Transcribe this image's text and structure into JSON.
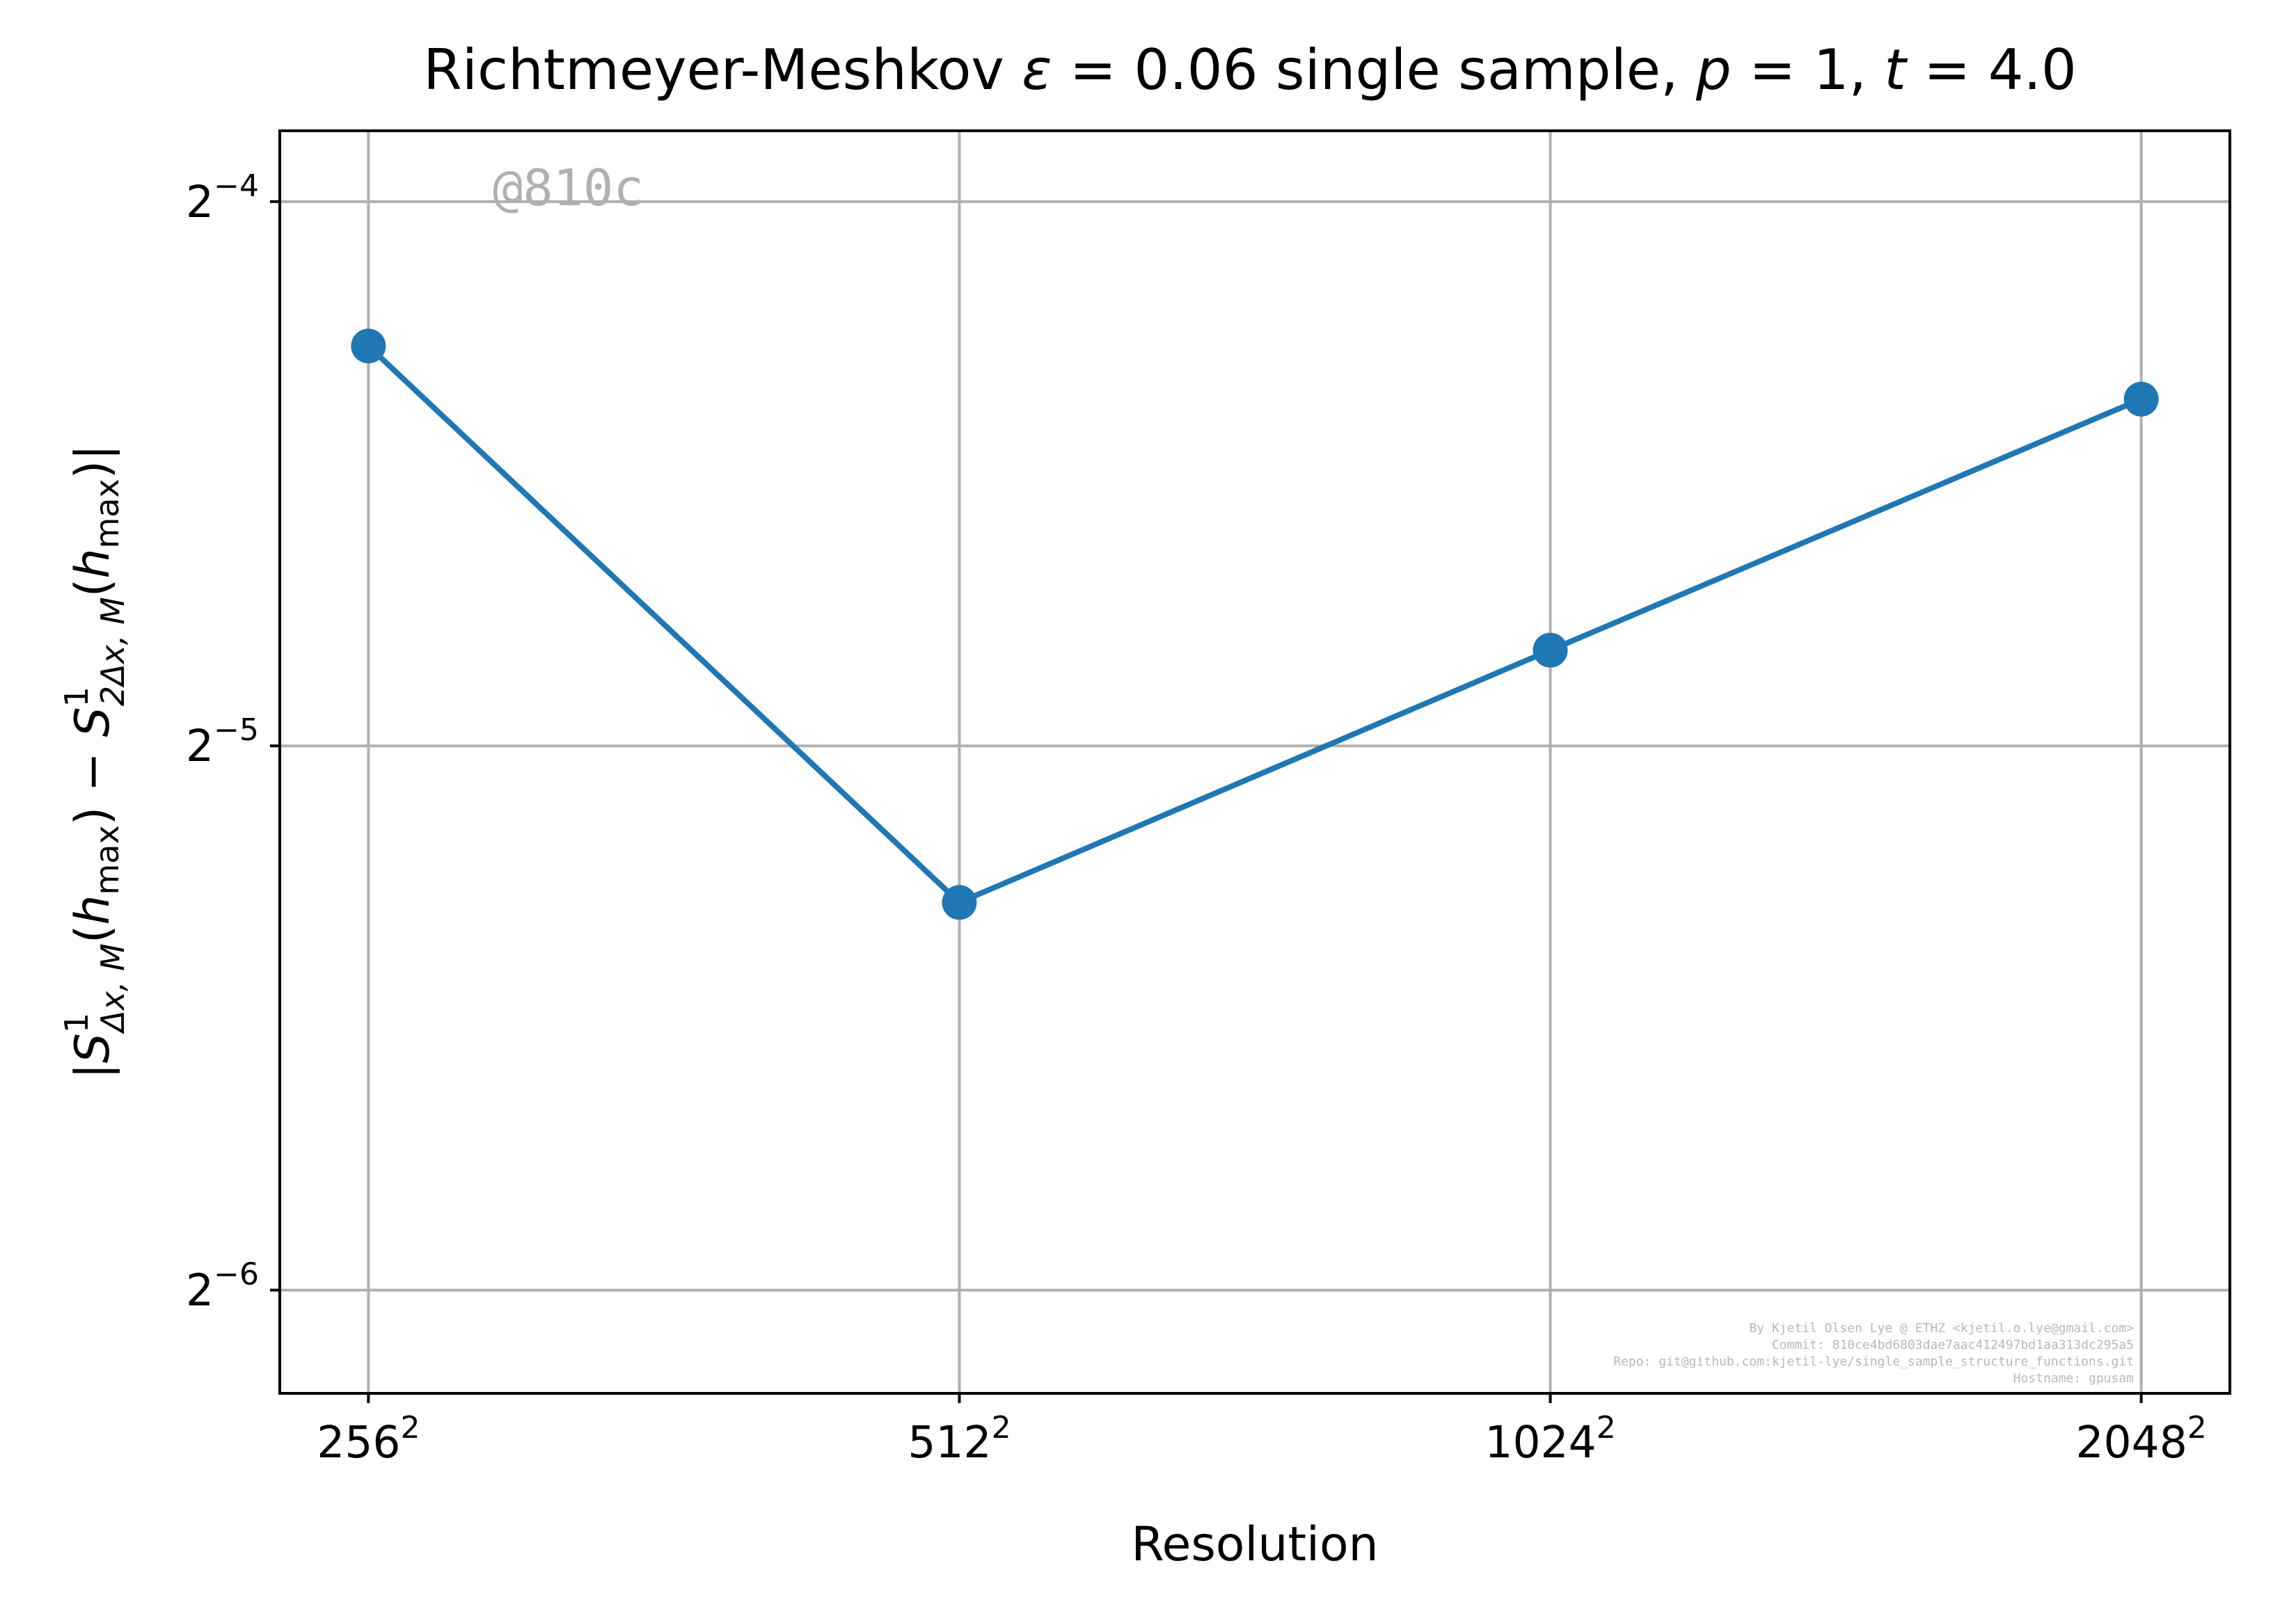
{
  "chart_data": {
    "type": "line",
    "title_parts": {
      "prefix": "Richtmeyer-Meshkov ",
      "eps_symbol": "ε",
      "eps_value": " = 0.06",
      "middle": " single sample, ",
      "p_symbol": "p",
      "p_value": " = 1, ",
      "t_symbol": "t",
      "t_value": " = 4.0"
    },
    "xlabel": "Resolution",
    "ylabel_parts": {
      "open": "|",
      "s1": "S",
      "sup1": "1",
      "sub1": "Δx, M",
      "arg1": "(",
      "h1": "h",
      "max1": "max",
      "close1": ")",
      "minus": " − ",
      "s2": "S",
      "sup2": "1",
      "sub2": "2Δx, M",
      "arg2": "(",
      "h2": "h",
      "max2": "max",
      "close2": ")",
      "end": "|"
    },
    "x_scale": "log2",
    "y_scale": "log2",
    "x": [
      256,
      512,
      1024,
      2048
    ],
    "x_tick_labels": [
      {
        "base": "256",
        "exp": "2"
      },
      {
        "base": "512",
        "exp": "2"
      },
      {
        "base": "1024",
        "exp": "2"
      },
      {
        "base": "2048",
        "exp": "2"
      }
    ],
    "y_ticks": [
      {
        "value": 0.0625,
        "base": "2",
        "exp": "−4"
      },
      {
        "value": 0.03125,
        "base": "2",
        "exp": "−5"
      },
      {
        "value": 0.015625,
        "base": "2",
        "exp": "−6"
      }
    ],
    "series": [
      {
        "values": [
          0.052,
          0.0256,
          0.0353,
          0.0486
        ],
        "color": "#1f77b4",
        "marker": "circle"
      }
    ],
    "ylim": [
      0.0137,
      0.0684
    ],
    "grid": true,
    "watermark": "@810c",
    "credits": [
      "By Kjetil Olsen Lye @ ETHZ <kjetil.o.lye@gmail.com>",
      "Commit: 810ce4bd6803dae7aac412497bd1aa313dc295a5",
      "Repo: git@github.com:kjetil-lye/single_sample_structure_functions.git",
      "Hostname: gpusam"
    ]
  }
}
